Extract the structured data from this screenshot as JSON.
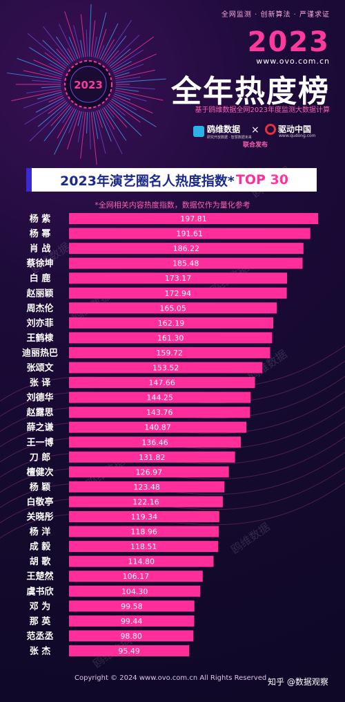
{
  "header": {
    "tagline": "全网监测 · 创新算法 · 严谨求证",
    "year": "2023",
    "url": "www.ovo.com.cn",
    "title": "全年热度榜",
    "subtitle": "基于鸥维数据全网2023年度监测大数据计算",
    "badge_year": "2023"
  },
  "logos": {
    "ovo": "鸥维数据",
    "ovo_sub": "研究开放数据 · 智慧数据未来",
    "times": "×",
    "qudong": "驱动中国",
    "qudong_url": "www.qudong.com",
    "joint": "联合发布"
  },
  "banner": {
    "title": "2023年演艺圈名人热度指数*",
    "tag": "TOP 30"
  },
  "note": "*全网相关内容热度指数，数据仅作为量化参考",
  "watermark": "鸥维数据",
  "chart_data": {
    "type": "bar",
    "orientation": "horizontal",
    "title": "2023年演艺圈名人热度指数*TOP 30",
    "bar_color": "#ff2e9a",
    "categories": [
      "杨 紫",
      "杨 幂",
      "肖 战",
      "蔡徐坤",
      "白 鹿",
      "赵丽颖",
      "周杰伦",
      "刘亦菲",
      "王鹤棣",
      "迪丽热巴",
      "张颂文",
      "张 译",
      "刘德华",
      "赵露思",
      "薛之谦",
      "王一博",
      "刀 郎",
      "檀健次",
      "杨 颖",
      "白敬亭",
      "关晓彤",
      "杨 洋",
      "成 毅",
      "胡 歌",
      "王楚然",
      "虞书欣",
      "邓 为",
      "那 英",
      "范丞丞",
      "张 杰"
    ],
    "values": [
      "197.81",
      "191.61",
      "186.22",
      "185.48",
      "173.17",
      "172.94",
      "165.05",
      "162.19",
      "161.30",
      "159.72",
      "153.52",
      "147.66",
      "144.25",
      "143.76",
      "140.87",
      "136.46",
      "131.82",
      "126.97",
      "123.48",
      "122.16",
      "119.34",
      "118.96",
      "118.51",
      "114.80",
      "106.17",
      "104.30",
      "99.58",
      "99.44",
      "98.80",
      "95.49"
    ]
  },
  "footer": {
    "copyright": "Copyright © 2024  www.ovo.com.cn All Rights Reserved",
    "zhihu": "知乎 @数据观察"
  }
}
